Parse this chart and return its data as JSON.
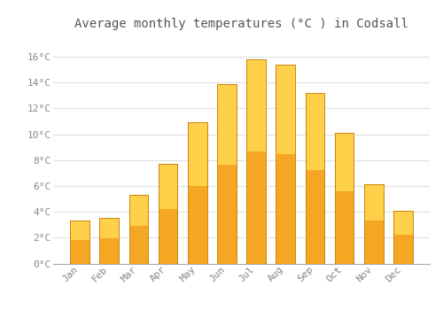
{
  "title": "Average monthly temperatures (°C ) in Codsall",
  "months": [
    "Jan",
    "Feb",
    "Mar",
    "Apr",
    "May",
    "Jun",
    "Jul",
    "Aug",
    "Sep",
    "Oct",
    "Nov",
    "Dec"
  ],
  "temperatures": [
    3.3,
    3.5,
    5.3,
    7.7,
    10.9,
    13.9,
    15.8,
    15.4,
    13.2,
    10.1,
    6.1,
    4.1
  ],
  "bar_color_bottom": "#F5A623",
  "bar_color_top": "#FFD04A",
  "bar_edge_color": "#C8860A",
  "background_color": "#FFFFFF",
  "grid_color": "#E0E0E0",
  "text_color": "#888888",
  "title_color": "#555555",
  "ylim": [
    0,
    17.5
  ],
  "yticks": [
    0,
    2,
    4,
    6,
    8,
    10,
    12,
    14,
    16
  ],
  "title_fontsize": 10,
  "tick_fontsize": 8,
  "font_family": "monospace",
  "bar_width": 0.65
}
